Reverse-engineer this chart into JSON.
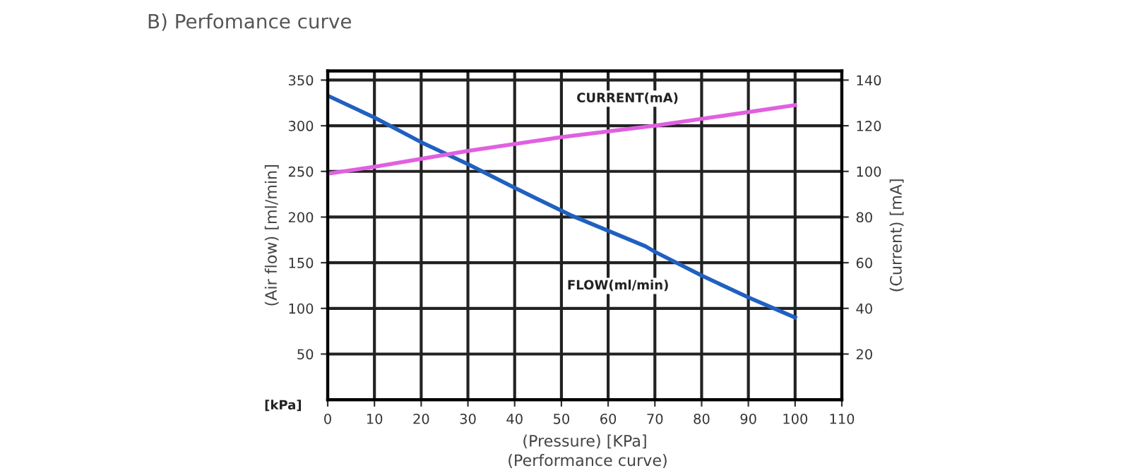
{
  "chart_data": {
    "type": "line",
    "title": "B) Perfomance curve",
    "xlabel": "(Pressure) [KPa]",
    "ylabel": "(Air flow) [ml/min]",
    "y2label": "(Current) [mA]",
    "annotations": [
      "[kPa]",
      "(Performance curve)"
    ],
    "x": [
      0,
      10,
      20,
      30,
      40,
      52,
      68,
      70,
      80,
      90,
      100
    ],
    "series": [
      {
        "name": "FLOW(ml/min)",
        "color": "#2060c0",
        "values": [
          333,
          309,
          282,
          258,
          232,
          202,
          168,
          162,
          136,
          112,
          90
        ]
      },
      {
        "name": "CURRENT(mA)",
        "color": "#e060e0",
        "axis": "y2",
        "x": [
          0,
          10,
          30,
          50,
          70,
          90,
          100
        ],
        "values": [
          99,
          102,
          109,
          115,
          120,
          126,
          129
        ]
      }
    ],
    "xlim": [
      0,
      110
    ],
    "xticks": [
      0,
      10,
      20,
      30,
      40,
      50,
      60,
      70,
      80,
      90,
      100,
      110
    ],
    "ylim": [
      0,
      360
    ],
    "yticks": [
      50,
      100,
      150,
      200,
      250,
      300,
      350
    ],
    "y2lim": [
      0,
      144
    ],
    "y2ticks": [
      20,
      40,
      60,
      80,
      100,
      120,
      140
    ],
    "grid": true,
    "legend": false,
    "marker": "none",
    "line_style": "solid"
  }
}
